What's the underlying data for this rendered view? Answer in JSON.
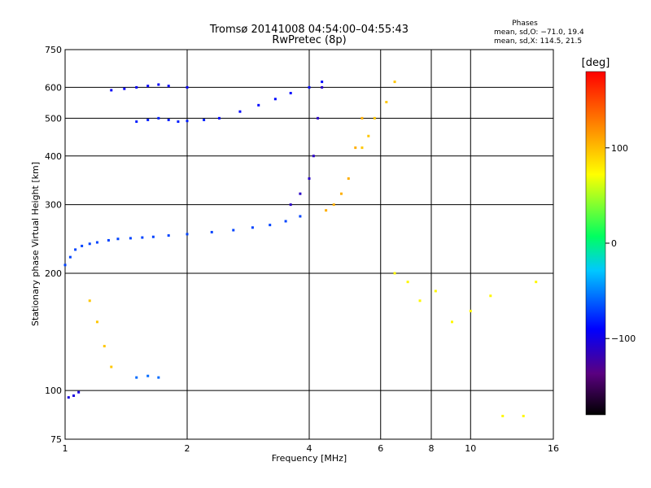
{
  "chart_data": {
    "type": "scatter",
    "title": "Tromsø 20141008 04:54:00–04:55:43",
    "subtitle": "RwPretec (8p)",
    "xlabel": "Frequency [MHz]",
    "ylabel": "Stationary phase Virtual Height [km]",
    "xscale": "log",
    "yscale": "log",
    "xlim": [
      1,
      16
    ],
    "ylim": [
      75,
      750
    ],
    "x_ticks": [
      1,
      2,
      4,
      6,
      8,
      10,
      16
    ],
    "y_ticks": [
      75,
      100,
      200,
      300,
      400,
      500,
      600,
      750
    ],
    "grid": true,
    "phase_legend": {
      "title": "Phases",
      "line_o": "mean, sd,O: −71.0, 19.4",
      "line_x": "mean, sd,X: 114.5, 21.5"
    },
    "colorbar": {
      "label": "[deg]",
      "range": [
        -180,
        180
      ],
      "ticks": [
        100,
        0,
        -100
      ],
      "colormap": [
        "#000000",
        "#5a0080",
        "#0000ff",
        "#00c8ff",
        "#00ff60",
        "#ffff00",
        "#ff8000",
        "#ff0000"
      ]
    },
    "series": [
      {
        "name": "",
        "x": [
          1.0,
          1.03,
          1.06,
          1.1,
          1.15,
          1.2,
          1.28,
          1.35,
          1.45,
          1.55,
          1.65,
          1.8,
          2.0,
          2.3,
          2.6,
          2.9,
          3.2,
          3.5,
          3.8
        ],
        "y": [
          210,
          220,
          230,
          235,
          238,
          240,
          243,
          245,
          246,
          247,
          248,
          250,
          252,
          255,
          258,
          262,
          266,
          272,
          280
        ],
        "phase": -60
      },
      {
        "name": "",
        "x": [
          1.5,
          1.6,
          1.7,
          1.8,
          1.9,
          2.0,
          2.2
        ],
        "y": [
          490,
          495,
          500,
          495,
          490,
          492,
          495
        ],
        "phase": -70
      },
      {
        "name": "",
        "x": [
          1.3,
          1.4,
          1.5,
          1.6,
          1.7,
          1.8,
          2.0
        ],
        "y": [
          590,
          595,
          600,
          605,
          610,
          605,
          600
        ],
        "phase": -80
      },
      {
        "name": "",
        "x": [
          2.4,
          2.7,
          3.0,
          3.3,
          3.6,
          4.0,
          4.3
        ],
        "y": [
          500,
          520,
          540,
          560,
          580,
          600,
          620
        ],
        "phase": -75
      },
      {
        "name": "",
        "x": [
          3.6,
          3.8,
          4.0,
          4.1,
          4.2,
          4.3
        ],
        "y": [
          300,
          320,
          350,
          400,
          500,
          600
        ],
        "phase": -100
      },
      {
        "name": "",
        "x": [
          4.4,
          4.6,
          4.8,
          5.0,
          5.2,
          5.4
        ],
        "y": [
          290,
          300,
          320,
          350,
          420,
          500
        ],
        "phase": 110
      },
      {
        "name": "",
        "x": [
          5.4,
          5.6,
          5.8,
          6.2,
          6.5
        ],
        "y": [
          420,
          450,
          500,
          550,
          620
        ],
        "phase": 100
      },
      {
        "name": "",
        "x": [
          1.02,
          1.05,
          1.08
        ],
        "y": [
          96,
          97,
          99
        ],
        "phase": -90
      },
      {
        "name": "",
        "x": [
          1.15,
          1.2,
          1.25,
          1.3
        ],
        "y": [
          170,
          150,
          130,
          115
        ],
        "phase": 100
      },
      {
        "name": "",
        "x": [
          1.5,
          1.6,
          1.7
        ],
        "y": [
          108,
          109,
          108
        ],
        "phase": -50
      },
      {
        "name": "",
        "x": [
          6.5,
          7.0,
          7.5,
          8.2,
          9.0,
          10.0,
          11.2,
          12.0,
          13.5,
          14.5
        ],
        "y": [
          200,
          190,
          170,
          180,
          150,
          160,
          175,
          86,
          86,
          190
        ],
        "phase": 80
      }
    ]
  }
}
